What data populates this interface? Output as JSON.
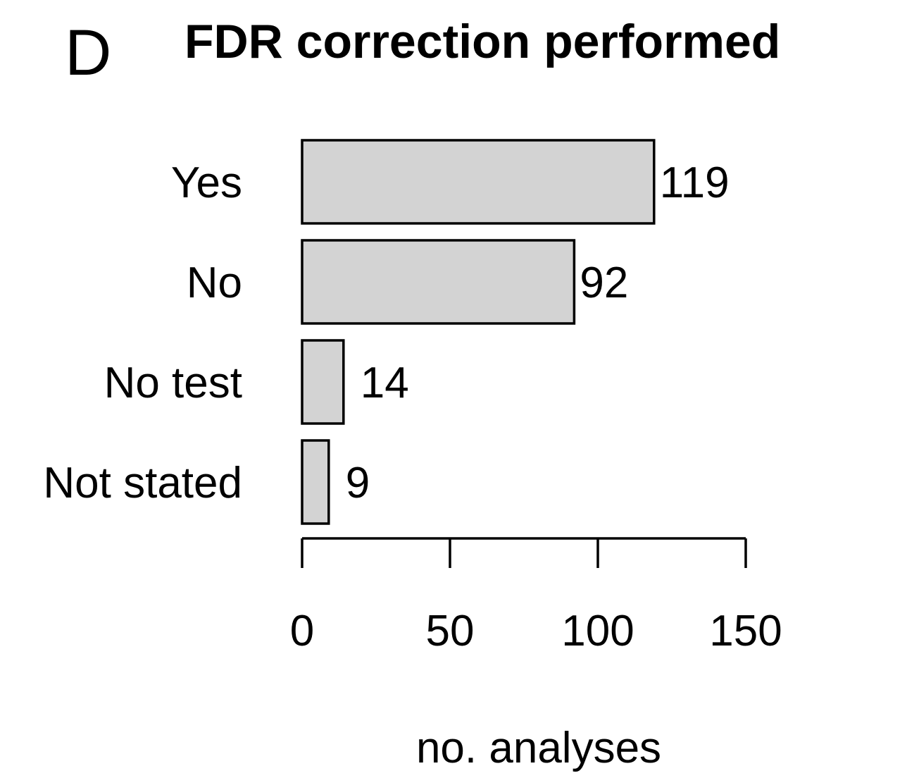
{
  "panel_label": "D",
  "chart_data": {
    "type": "bar",
    "orientation": "horizontal",
    "title": "FDR correction performed",
    "categories": [
      "Yes",
      "No",
      "No test",
      "Not stated"
    ],
    "values": [
      119,
      92,
      14,
      9
    ],
    "value_labels": [
      "119",
      "92",
      "14",
      "9"
    ],
    "xlabel": "no. analyses",
    "ylabel": "",
    "xlim": [
      0,
      150
    ],
    "x_ticks": [
      0,
      50,
      100,
      150
    ],
    "x_tick_labels": [
      "0",
      "50",
      "100",
      "150"
    ],
    "grid": false,
    "legend": "none",
    "bar_color": "#d3d3d3",
    "bar_edge_color": "#000000"
  }
}
